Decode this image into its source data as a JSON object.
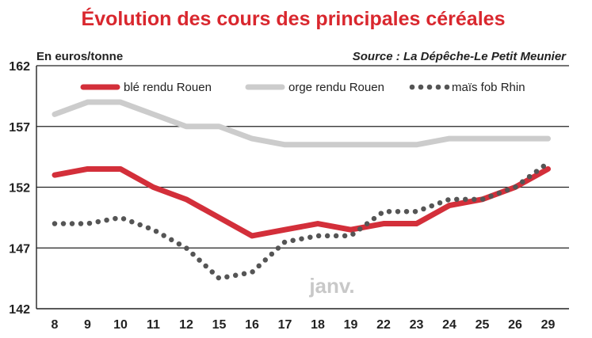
{
  "chart_data": {
    "type": "line",
    "title": "Évolution des cours des principales céréales",
    "subtitle": "En euros/tonne",
    "source": "Source : La Dépêche-Le Petit Meunier",
    "annotation": "janv.",
    "categories": [
      "8",
      "9",
      "10",
      "11",
      "12",
      "15",
      "16",
      "17",
      "18",
      "19",
      "22",
      "23",
      "24",
      "25",
      "26",
      "29"
    ],
    "yticks": [
      "142",
      "147",
      "152",
      "157",
      "162"
    ],
    "ylim": [
      142,
      162
    ],
    "grid": true,
    "legend_position": "top",
    "series": [
      {
        "name": "blé rendu Rouen",
        "color": "#d32f3a",
        "style": "solid",
        "values": [
          153,
          153.5,
          153.5,
          152,
          151,
          149.5,
          148,
          148.5,
          149,
          148.5,
          149,
          149,
          150.5,
          151,
          152,
          153.5
        ]
      },
      {
        "name": "orge rendu Rouen",
        "color": "#cccccc",
        "style": "solid",
        "values": [
          158,
          159,
          159,
          158,
          157,
          157,
          156,
          155.5,
          155.5,
          155.5,
          155.5,
          155.5,
          156,
          156,
          156,
          156
        ]
      },
      {
        "name": "maïs fob Rhin",
        "color": "#555555",
        "style": "dotted",
        "values": [
          149,
          149,
          149.5,
          148.5,
          147,
          144.5,
          145,
          147.5,
          148,
          148,
          150,
          150,
          151,
          151,
          152,
          154
        ]
      }
    ]
  }
}
